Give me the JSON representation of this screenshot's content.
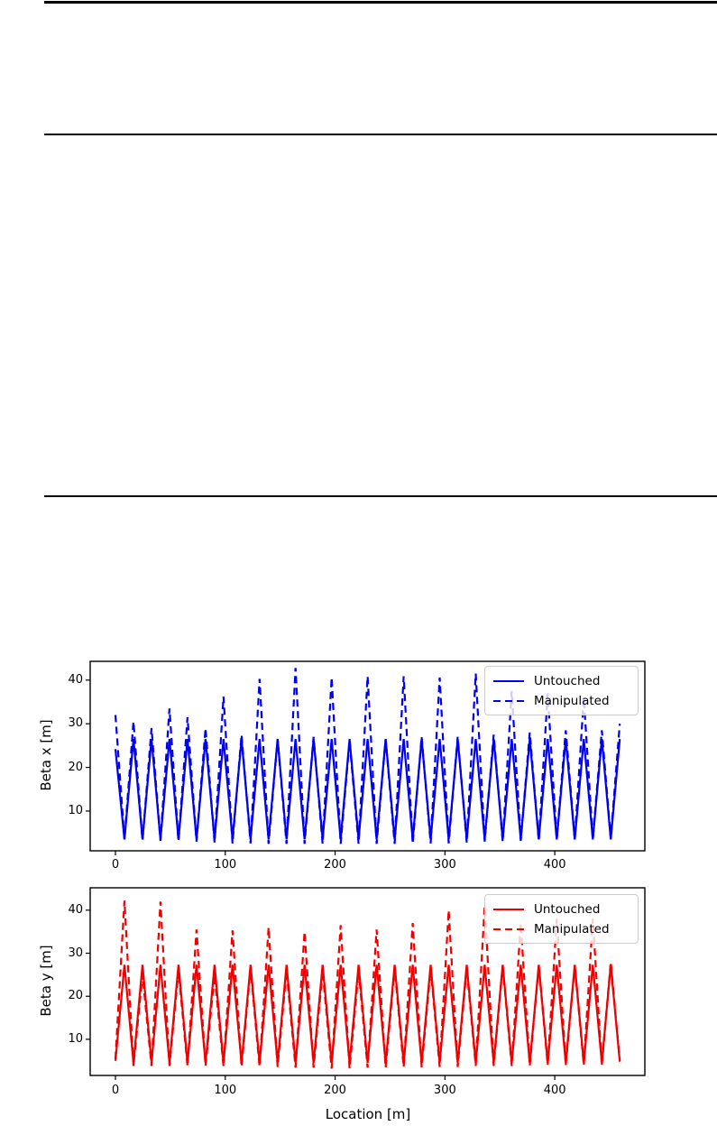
{
  "chart_data": [
    {
      "type": "line",
      "title": "",
      "xlabel": "",
      "ylabel": "Beta x [m]",
      "xlim": [
        -23,
        482
      ],
      "ylim": [
        0.9,
        44.3
      ],
      "xticks": [
        0,
        100,
        200,
        300,
        400
      ],
      "yticks": [
        10,
        20,
        30,
        40
      ],
      "grid": false,
      "legend_position": "upper right",
      "series": [
        {
          "name": "Untouched",
          "color": "#0000ee",
          "style": "solid",
          "points": [
            [
              0,
              24.2
            ],
            [
              8.2,
              3.5
            ],
            [
              16.4,
              26.5
            ],
            [
              24.6,
              3.5
            ],
            [
              32.8,
              26.5
            ],
            [
              41,
              3.5
            ],
            [
              49.2,
              26.5
            ],
            [
              57.4,
              3.5
            ],
            [
              65.6,
              26.5
            ],
            [
              73.8,
              3.5
            ],
            [
              82,
              26.5
            ],
            [
              90.2,
              3.5
            ],
            [
              98.4,
              26.5
            ],
            [
              106.6,
              3.5
            ],
            [
              114.8,
              26.5
            ],
            [
              123,
              3.5
            ],
            [
              131.2,
              26.5
            ],
            [
              139.4,
              3.5
            ],
            [
              147.6,
              26.5
            ],
            [
              155.8,
              3.5
            ],
            [
              164,
              26.5
            ],
            [
              172.2,
              3.5
            ],
            [
              180.4,
              26.5
            ],
            [
              188.6,
              3.5
            ],
            [
              196.8,
              26.5
            ],
            [
              205,
              3.5
            ],
            [
              213.2,
              26.5
            ],
            [
              221.4,
              3.5
            ],
            [
              229.6,
              26.5
            ],
            [
              237.8,
              3.5
            ],
            [
              246,
              26.5
            ],
            [
              254.2,
              3.5
            ],
            [
              262.4,
              26.5
            ],
            [
              270.6,
              3.5
            ],
            [
              278.8,
              26.5
            ],
            [
              287,
              3.5
            ],
            [
              295.2,
              26.5
            ],
            [
              303.4,
              3.5
            ],
            [
              311.6,
              26.5
            ],
            [
              319.8,
              3.5
            ],
            [
              328,
              26.5
            ],
            [
              336.2,
              3.5
            ],
            [
              344.4,
              26.5
            ],
            [
              352.6,
              3.5
            ],
            [
              360.8,
              26.5
            ],
            [
              369,
              3.5
            ],
            [
              377.2,
              26.5
            ],
            [
              385.4,
              3.5
            ],
            [
              393.6,
              26.5
            ],
            [
              401.8,
              3.5
            ],
            [
              410,
              26.5
            ],
            [
              418.2,
              3.5
            ],
            [
              426.4,
              26.5
            ],
            [
              434.6,
              3.5
            ],
            [
              442.8,
              26.5
            ],
            [
              451,
              3.5
            ],
            [
              459.2,
              26.5
            ]
          ]
        },
        {
          "name": "Manipulated",
          "color": "#0000ee",
          "style": "dashed",
          "points": [
            [
              0,
              32
            ],
            [
              8.2,
              3.5
            ],
            [
              16.4,
              30.5
            ],
            [
              24.6,
              3.2
            ],
            [
              32.8,
              29
            ],
            [
              41,
              3.2
            ],
            [
              49.2,
              33.5
            ],
            [
              57.4,
              3
            ],
            [
              65.6,
              31.5
            ],
            [
              73.8,
              3
            ],
            [
              82,
              29
            ],
            [
              90.2,
              2.8
            ],
            [
              98.4,
              36.2
            ],
            [
              106.6,
              2.6
            ],
            [
              114.8,
              27.5
            ],
            [
              123,
              2.6
            ],
            [
              131.2,
              40.3
            ],
            [
              139.4,
              2.5
            ],
            [
              147.6,
              26.5
            ],
            [
              155.8,
              2.5
            ],
            [
              164,
              42.8
            ],
            [
              172.2,
              2.5
            ],
            [
              180.4,
              27
            ],
            [
              188.6,
              2.5
            ],
            [
              196.8,
              40.6
            ],
            [
              205,
              2.5
            ],
            [
              213.2,
              26
            ],
            [
              221.4,
              2.5
            ],
            [
              229.6,
              40.9
            ],
            [
              237.8,
              2.5
            ],
            [
              246,
              26.5
            ],
            [
              254.2,
              2.5
            ],
            [
              262.4,
              40.9
            ],
            [
              270.6,
              2.5
            ],
            [
              278.8,
              27
            ],
            [
              287,
              2.6
            ],
            [
              295.2,
              40.6
            ],
            [
              303.4,
              2.6
            ],
            [
              311.6,
              27
            ],
            [
              319.8,
              2.8
            ],
            [
              328,
              41.5
            ],
            [
              336.2,
              3
            ],
            [
              344.4,
              27.5
            ],
            [
              352.6,
              3
            ],
            [
              360.8,
              37.5
            ],
            [
              369,
              3.2
            ],
            [
              377.2,
              28
            ],
            [
              385.4,
              3.2
            ],
            [
              393.6,
              37
            ],
            [
              401.8,
              3.5
            ],
            [
              410,
              28.5
            ],
            [
              418.2,
              3.5
            ],
            [
              426.4,
              36
            ],
            [
              434.6,
              3.5
            ],
            [
              442.8,
              28.5
            ],
            [
              451,
              3.8
            ],
            [
              459.2,
              30
            ]
          ]
        }
      ]
    },
    {
      "type": "line",
      "title": "",
      "xlabel": "Location [m]",
      "ylabel": "Beta y [m]",
      "xlim": [
        -23,
        482
      ],
      "ylim": [
        1.6,
        45.2
      ],
      "xticks": [
        0,
        100,
        200,
        300,
        400
      ],
      "yticks": [
        10,
        20,
        30,
        40
      ],
      "grid": false,
      "legend_position": "upper right",
      "series": [
        {
          "name": "Untouched",
          "color": "#ee0000",
          "style": "solid",
          "points": [
            [
              0,
              5
            ],
            [
              8.2,
              27.3
            ],
            [
              16.4,
              4.5
            ],
            [
              24.6,
              27.3
            ],
            [
              32.8,
              4.5
            ],
            [
              41,
              27.3
            ],
            [
              49.2,
              4.5
            ],
            [
              57.4,
              27.3
            ],
            [
              65.6,
              4.5
            ],
            [
              73.8,
              27.3
            ],
            [
              82,
              4.5
            ],
            [
              90.2,
              27.3
            ],
            [
              98.4,
              4.5
            ],
            [
              106.6,
              27.3
            ],
            [
              114.8,
              4.5
            ],
            [
              123,
              27.3
            ],
            [
              131.2,
              4.5
            ],
            [
              139.4,
              27.3
            ],
            [
              147.6,
              4.5
            ],
            [
              155.8,
              27.3
            ],
            [
              164,
              4.5
            ],
            [
              172.2,
              27.3
            ],
            [
              180.4,
              4.5
            ],
            [
              188.6,
              27.3
            ],
            [
              196.8,
              4.5
            ],
            [
              205,
              27.3
            ],
            [
              213.2,
              4.5
            ],
            [
              221.4,
              27.3
            ],
            [
              229.6,
              4.5
            ],
            [
              237.8,
              27.3
            ],
            [
              246,
              4.5
            ],
            [
              254.2,
              27.3
            ],
            [
              262.4,
              4.5
            ],
            [
              270.6,
              27.3
            ],
            [
              278.8,
              4.5
            ],
            [
              287,
              27.3
            ],
            [
              295.2,
              4.5
            ],
            [
              303.4,
              27.3
            ],
            [
              311.6,
              4.5
            ],
            [
              319.8,
              27.3
            ],
            [
              328,
              4.5
            ],
            [
              336.2,
              27.3
            ],
            [
              344.4,
              4.5
            ],
            [
              352.6,
              27.3
            ],
            [
              360.8,
              4.5
            ],
            [
              369,
              27.3
            ],
            [
              377.2,
              4.5
            ],
            [
              385.4,
              27.3
            ],
            [
              393.6,
              4.5
            ],
            [
              401.8,
              27.3
            ],
            [
              410,
              4.5
            ],
            [
              418.2,
              27.3
            ],
            [
              426.4,
              4.5
            ],
            [
              434.6,
              27.3
            ],
            [
              442.8,
              4.5
            ],
            [
              451,
              27.3
            ],
            [
              459.2,
              4.8
            ]
          ]
        },
        {
          "name": "Manipulated",
          "color": "#ee0000",
          "style": "dashed",
          "points": [
            [
              0,
              5.5
            ],
            [
              8.2,
              42.2
            ],
            [
              16.4,
              3.8
            ],
            [
              24.6,
              25
            ],
            [
              32.8,
              3.8
            ],
            [
              41,
              42
            ],
            [
              49.2,
              3.8
            ],
            [
              57.4,
              26
            ],
            [
              65.6,
              3.8
            ],
            [
              73.8,
              35.5
            ],
            [
              82,
              3.8
            ],
            [
              90.2,
              25
            ],
            [
              98.4,
              3.8
            ],
            [
              106.6,
              35.3
            ],
            [
              114.8,
              3.6
            ],
            [
              123,
              26.5
            ],
            [
              131.2,
              3.6
            ],
            [
              139.4,
              36
            ],
            [
              147.6,
              3.6
            ],
            [
              155.8,
              26
            ],
            [
              164,
              3.4
            ],
            [
              172.2,
              35
            ],
            [
              180.4,
              3.4
            ],
            [
              188.6,
              26
            ],
            [
              196.8,
              3.2
            ],
            [
              205,
              36.5
            ],
            [
              213.2,
              3.2
            ],
            [
              221.4,
              26
            ],
            [
              229.6,
              3.4
            ],
            [
              237.8,
              35.5
            ],
            [
              246,
              3.4
            ],
            [
              254.2,
              26.5
            ],
            [
              262.4,
              3.5
            ],
            [
              270.6,
              37
            ],
            [
              278.8,
              3.5
            ],
            [
              287,
              26.5
            ],
            [
              295.2,
              3.6
            ],
            [
              303.4,
              40
            ],
            [
              311.6,
              3.6
            ],
            [
              319.8,
              26.5
            ],
            [
              328,
              3.8
            ],
            [
              336.2,
              41
            ],
            [
              344.4,
              3.8
            ],
            [
              352.6,
              27
            ],
            [
              360.8,
              3.8
            ],
            [
              369,
              37
            ],
            [
              377.2,
              3.8
            ],
            [
              385.4,
              27
            ],
            [
              393.6,
              4
            ],
            [
              401.8,
              38
            ],
            [
              410,
              4
            ],
            [
              418.2,
              27
            ],
            [
              426.4,
              4
            ],
            [
              434.6,
              38
            ],
            [
              442.8,
              4
            ],
            [
              451,
              28
            ],
            [
              459.2,
              5
            ]
          ]
        }
      ]
    }
  ]
}
